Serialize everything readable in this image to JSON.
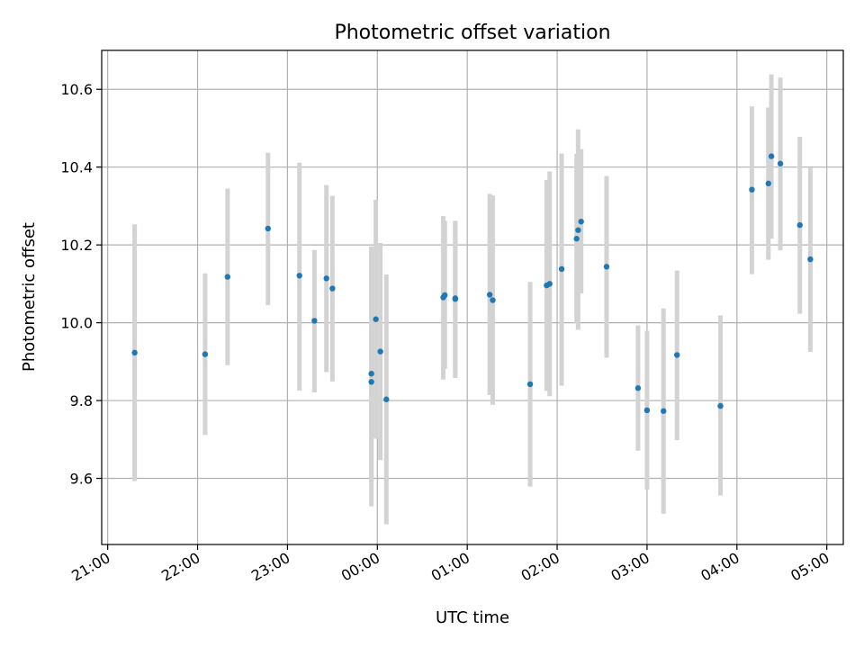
{
  "chart_data": {
    "type": "scatter",
    "title": "Photometric offset variation",
    "xlabel": "UTC time",
    "ylabel": "Photometric offset",
    "grid": true,
    "x_axis_kind": "time",
    "xlim": [
      "20:56",
      "05:11"
    ],
    "ylim": [
      9.43,
      10.7
    ],
    "x_ticks": [
      "21:00",
      "22:00",
      "23:00",
      "00:00",
      "01:00",
      "02:00",
      "03:00",
      "04:00",
      "05:00"
    ],
    "y_ticks": [
      "9.6",
      "9.8",
      "10.0",
      "10.2",
      "10.4",
      "10.6"
    ],
    "colors": {
      "point": "#1f77b4",
      "errorbar": "#d3d3d3",
      "grid": "#b0b0b0"
    },
    "points": [
      {
        "x": "21:18",
        "y": 9.923,
        "ylow": 9.593,
        "yhigh": 10.253
      },
      {
        "x": "22:05",
        "y": 9.919,
        "ylow": 9.712,
        "yhigh": 10.127
      },
      {
        "x": "22:20",
        "y": 10.118,
        "ylow": 9.891,
        "yhigh": 10.345
      },
      {
        "x": "22:47",
        "y": 10.242,
        "ylow": 10.045,
        "yhigh": 10.437
      },
      {
        "x": "23:08",
        "y": 10.121,
        "ylow": 9.826,
        "yhigh": 10.411
      },
      {
        "x": "23:18",
        "y": 10.005,
        "ylow": 9.821,
        "yhigh": 10.187
      },
      {
        "x": "23:26",
        "y": 10.114,
        "ylow": 9.873,
        "yhigh": 10.354
      },
      {
        "x": "23:30",
        "y": 10.088,
        "ylow": 9.849,
        "yhigh": 10.326
      },
      {
        "x": "23:56",
        "y": 9.869,
        "ylow": 9.528,
        "yhigh": 10.196
      },
      {
        "x": "23:56",
        "y": 9.848,
        "ylow": 9.594,
        "yhigh": 10.196
      },
      {
        "x": "23:59",
        "y": 10.009,
        "ylow": 9.702,
        "yhigh": 10.316
      },
      {
        "x": "00:02",
        "y": 9.926,
        "ylow": 9.647,
        "yhigh": 10.205
      },
      {
        "x": "00:06",
        "y": 9.803,
        "ylow": 9.482,
        "yhigh": 10.124
      },
      {
        "x": "00:44",
        "y": 10.065,
        "ylow": 9.854,
        "yhigh": 10.274
      },
      {
        "x": "00:45",
        "y": 10.071,
        "ylow": 9.881,
        "yhigh": 10.262
      },
      {
        "x": "00:52",
        "y": 10.061,
        "ylow": 9.858,
        "yhigh": 10.262
      },
      {
        "x": "00:52",
        "y": 10.063,
        "ylow": 9.871,
        "yhigh": 10.256
      },
      {
        "x": "01:15",
        "y": 10.072,
        "ylow": 9.814,
        "yhigh": 10.331
      },
      {
        "x": "01:17",
        "y": 10.058,
        "ylow": 9.789,
        "yhigh": 10.327
      },
      {
        "x": "01:42",
        "y": 9.842,
        "ylow": 9.579,
        "yhigh": 10.105
      },
      {
        "x": "01:53",
        "y": 10.096,
        "ylow": 9.825,
        "yhigh": 10.367
      },
      {
        "x": "01:55",
        "y": 10.1,
        "ylow": 9.811,
        "yhigh": 10.389
      },
      {
        "x": "02:03",
        "y": 10.138,
        "ylow": 9.838,
        "yhigh": 10.435
      },
      {
        "x": "02:13",
        "y": 10.216,
        "ylow": 9.998,
        "yhigh": 10.434
      },
      {
        "x": "02:14",
        "y": 10.238,
        "ylow": 9.982,
        "yhigh": 10.497
      },
      {
        "x": "02:16",
        "y": 10.26,
        "ylow": 10.075,
        "yhigh": 10.446
      },
      {
        "x": "02:33",
        "y": 10.144,
        "ylow": 9.91,
        "yhigh": 10.377
      },
      {
        "x": "02:54",
        "y": 9.832,
        "ylow": 9.671,
        "yhigh": 9.993
      },
      {
        "x": "03:00",
        "y": 9.775,
        "ylow": 9.571,
        "yhigh": 9.979
      },
      {
        "x": "03:11",
        "y": 9.773,
        "ylow": 9.509,
        "yhigh": 10.037
      },
      {
        "x": "03:20",
        "y": 9.917,
        "ylow": 9.698,
        "yhigh": 10.134
      },
      {
        "x": "03:49",
        "y": 9.786,
        "ylow": 9.556,
        "yhigh": 10.019
      },
      {
        "x": "04:10",
        "y": 10.342,
        "ylow": 10.125,
        "yhigh": 10.556
      },
      {
        "x": "04:21",
        "y": 10.358,
        "ylow": 10.162,
        "yhigh": 10.553
      },
      {
        "x": "04:23",
        "y": 10.428,
        "ylow": 10.216,
        "yhigh": 10.638
      },
      {
        "x": "04:29",
        "y": 10.409,
        "ylow": 10.186,
        "yhigh": 10.63
      },
      {
        "x": "04:42",
        "y": 10.251,
        "ylow": 10.023,
        "yhigh": 10.478
      },
      {
        "x": "04:49",
        "y": 10.163,
        "ylow": 9.925,
        "yhigh": 10.398
      }
    ]
  }
}
